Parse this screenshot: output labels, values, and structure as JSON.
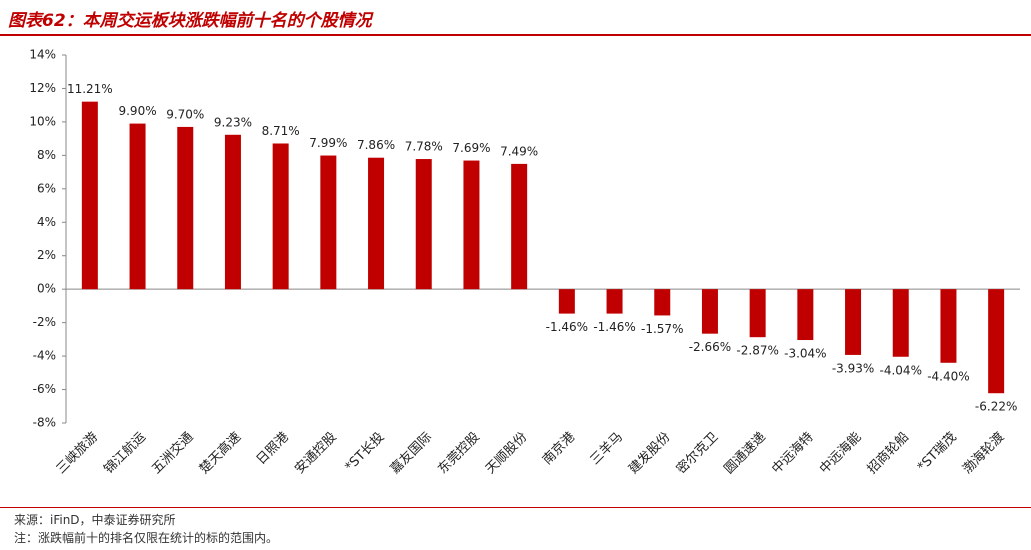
{
  "chart_data": {
    "type": "bar",
    "title": "图表62：本周交运板块涨跌幅前十名的个股情况",
    "categories": [
      "三峡旅游",
      "锦江航运",
      "五洲交通",
      "楚天高速",
      "日照港",
      "安通控股",
      "*ST长投",
      "嘉友国际",
      "东莞控股",
      "天顺股份",
      "南京港",
      "三羊马",
      "建发股份",
      "密尔克卫",
      "圆通速递",
      "中远海特",
      "中远海能",
      "招商轮船",
      "*ST瑞茂",
      "渤海轮渡"
    ],
    "values": [
      11.21,
      9.9,
      9.7,
      9.23,
      8.71,
      7.99,
      7.86,
      7.78,
      7.69,
      7.49,
      -1.46,
      -1.46,
      -1.57,
      -2.66,
      -2.87,
      -3.04,
      -3.93,
      -4.04,
      -4.4,
      -6.22
    ],
    "value_labels": [
      "11.21%",
      "9.90%",
      "9.70%",
      "9.23%",
      "8.71%",
      "7.99%",
      "7.86%",
      "7.78%",
      "7.69%",
      "7.49%",
      "-1.46%",
      "-1.46%",
      "-1.57%",
      "-2.66%",
      "-2.87%",
      "-3.04%",
      "-3.93%",
      "-4.04%",
      "-4.40%",
      "-6.22%"
    ],
    "color": "#c00000",
    "ylim": [
      -8,
      14
    ],
    "yticks": [
      {
        "value": -8,
        "label": "-8%"
      },
      {
        "value": -6,
        "label": "-6%"
      },
      {
        "value": -4,
        "label": "-4%"
      },
      {
        "value": -2,
        "label": "-2%"
      },
      {
        "value": 0,
        "label": "0%"
      },
      {
        "value": 2,
        "label": "2%"
      },
      {
        "value": 4,
        "label": "4%"
      },
      {
        "value": 6,
        "label": "6%"
      },
      {
        "value": 8,
        "label": "8%"
      },
      {
        "value": 10,
        "label": "10%"
      },
      {
        "value": 12,
        "label": "12%"
      },
      {
        "value": 14,
        "label": "14%"
      }
    ],
    "grid": false,
    "source": "来源：iFinD，中泰证券研究所",
    "note": "注：涨跌幅前十的排名仅限在统计的标的范围内。"
  }
}
